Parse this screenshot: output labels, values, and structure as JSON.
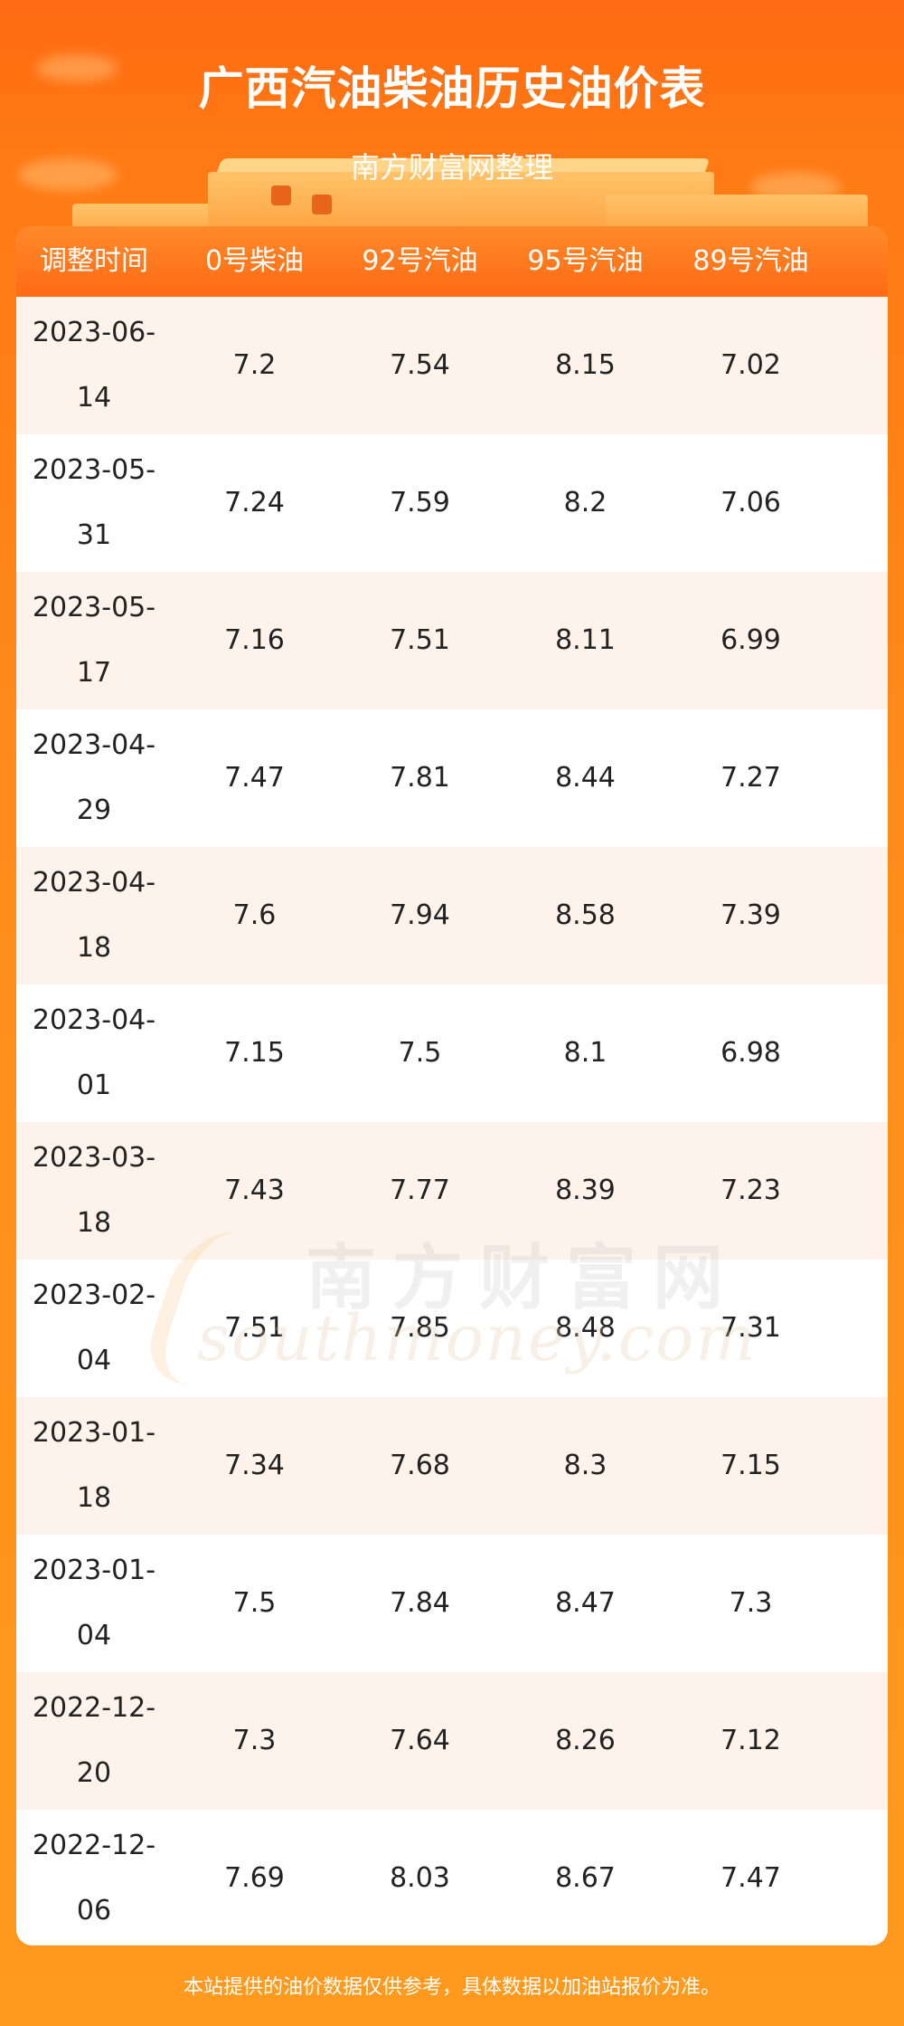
{
  "title": "广西汽油柴油历史油价表",
  "subtitle": "南方财富网整理",
  "table": {
    "headers": [
      "调整时间",
      "0号柴油",
      "92号汽油",
      "95号汽油",
      "89号汽油"
    ],
    "rows": [
      {
        "date": "2023-06-14",
        "d0": "7.2",
        "g92": "7.54",
        "g95": "8.15",
        "g89": "7.02"
      },
      {
        "date": "2023-05-31",
        "d0": "7.24",
        "g92": "7.59",
        "g95": "8.2",
        "g89": "7.06"
      },
      {
        "date": "2023-05-17",
        "d0": "7.16",
        "g92": "7.51",
        "g95": "8.11",
        "g89": "6.99"
      },
      {
        "date": "2023-04-29",
        "d0": "7.47",
        "g92": "7.81",
        "g95": "8.44",
        "g89": "7.27"
      },
      {
        "date": "2023-04-18",
        "d0": "7.6",
        "g92": "7.94",
        "g95": "8.58",
        "g89": "7.39"
      },
      {
        "date": "2023-04-01",
        "d0": "7.15",
        "g92": "7.5",
        "g95": "8.1",
        "g89": "6.98"
      },
      {
        "date": "2023-03-18",
        "d0": "7.43",
        "g92": "7.77",
        "g95": "8.39",
        "g89": "7.23"
      },
      {
        "date": "2023-02-04",
        "d0": "7.51",
        "g92": "7.85",
        "g95": "8.48",
        "g89": "7.31"
      },
      {
        "date": "2023-01-18",
        "d0": "7.34",
        "g92": "7.68",
        "g95": "8.3",
        "g89": "7.15"
      },
      {
        "date": "2023-01-04",
        "d0": "7.5",
        "g92": "7.84",
        "g95": "8.47",
        "g89": "7.3"
      },
      {
        "date": "2022-12-20",
        "d0": "7.3",
        "g92": "7.64",
        "g95": "8.26",
        "g89": "7.12"
      },
      {
        "date": "2022-12-06",
        "d0": "7.69",
        "g92": "8.03",
        "g95": "8.67",
        "g89": "7.47"
      }
    ]
  },
  "watermark": {
    "cn": "南方财富网",
    "en": "southmoney.com"
  },
  "footer": "本站提供的油价数据仅供参考，具体数据以加油站报价为准。",
  "colors": {
    "accent": "#ff6a14",
    "row_alt": "#fdf3ea"
  }
}
